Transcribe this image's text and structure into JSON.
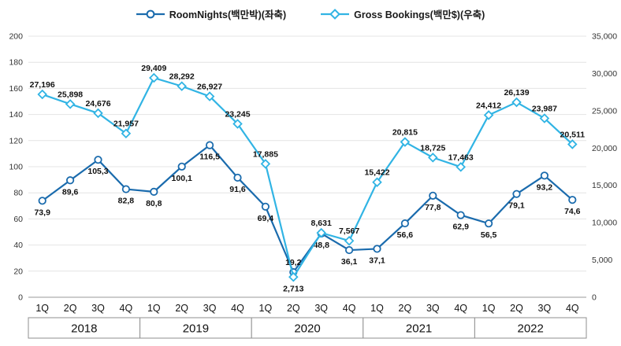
{
  "legend": {
    "items": [
      {
        "label": "RoomNights(백만박)(좌축)",
        "marker": "circle",
        "color": "#1a6bad"
      },
      {
        "label": "Gross Bookings(백만$)(우축)",
        "marker": "diamond",
        "color": "#31b4e4"
      }
    ]
  },
  "chart_data": {
    "type": "line",
    "title": "",
    "x_quarter_labels": [
      "1Q",
      "2Q",
      "3Q",
      "4Q",
      "1Q",
      "2Q",
      "3Q",
      "4Q",
      "1Q",
      "2Q",
      "3Q",
      "4Q",
      "1Q",
      "2Q",
      "3Q",
      "4Q",
      "1Q",
      "2Q",
      "3Q",
      "4Q"
    ],
    "year_groups": [
      "2018",
      "2019",
      "2020",
      "2021",
      "2022"
    ],
    "left_axis": {
      "min": 0,
      "max": 200,
      "ticks": [
        "0",
        "20",
        "40",
        "60",
        "80",
        "100",
        "120",
        "140",
        "160",
        "180",
        "200"
      ]
    },
    "right_axis": {
      "min": 0,
      "max": 35000,
      "ticks": [
        "0",
        "5,000",
        "10,000",
        "15,000",
        "20,000",
        "25,000",
        "30,000",
        "35,000"
      ]
    },
    "grid": true,
    "legend_position": "top",
    "series": [
      {
        "id": "roomnights",
        "name": "RoomNights(백만박)(좌축)",
        "axis": "left",
        "color": "#1a6bad",
        "marker": "circle",
        "values": [
          73.9,
          89.6,
          105.3,
          82.8,
          80.8,
          100.1,
          116.5,
          91.6,
          69.4,
          19.2,
          48.8,
          36.1,
          37.1,
          56.6,
          77.8,
          62.9,
          56.5,
          79.1,
          93.2,
          74.6
        ],
        "labels": [
          "73,9",
          "89,6",
          "105,3",
          "82,8",
          "80,8",
          "100,1",
          "116,5",
          "91,6",
          "69,4",
          "19,2",
          "48,8",
          "36,1",
          "37,1",
          "56,6",
          "77,8",
          "62,9",
          "56,5",
          "79,1",
          "93,2",
          "74,6"
        ],
        "label_side": [
          "below",
          "below",
          "below",
          "below",
          "below",
          "below",
          "below",
          "below",
          "below",
          "above",
          "below",
          "below",
          "below",
          "below",
          "below",
          "below",
          "below",
          "below",
          "below",
          "below"
        ]
      },
      {
        "id": "gross-bookings",
        "name": "Gross Bookings(백만$)(우축)",
        "axis": "right",
        "color": "#31b4e4",
        "marker": "diamond",
        "values": [
          27196,
          25898,
          24676,
          21957,
          29409,
          28292,
          26927,
          23245,
          17885,
          2713,
          8631,
          7567,
          15422,
          20815,
          18725,
          17463,
          24412,
          26139,
          23987,
          20511
        ],
        "labels": [
          "27,196",
          "25,898",
          "24,676",
          "21,957",
          "29,409",
          "28,292",
          "26,927",
          "23,245",
          "17,885",
          "2,713",
          "8,631",
          "7,567",
          "15,422",
          "20,815",
          "18,725",
          "17,463",
          "24,412",
          "26,139",
          "23,987",
          "20,511"
        ],
        "label_side": [
          "above",
          "above",
          "above",
          "above",
          "above",
          "above",
          "above",
          "above",
          "above",
          "below",
          "above",
          "above",
          "above",
          "above",
          "above",
          "above",
          "above",
          "above",
          "above",
          "above"
        ]
      }
    ]
  }
}
